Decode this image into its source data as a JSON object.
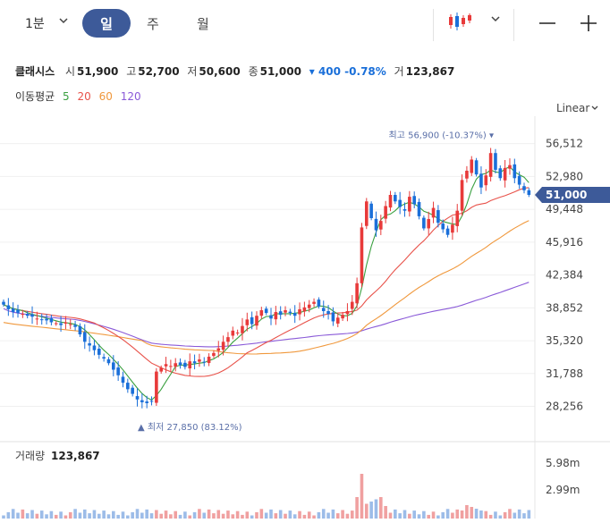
{
  "toolbar": {
    "interval": "1분",
    "tabs": [
      "일",
      "주",
      "월"
    ],
    "active_tab": "일"
  },
  "stock": {
    "name": "클래시스",
    "open_label": "시",
    "open": "51,900",
    "high_label": "고",
    "high": "52,700",
    "low_label": "저",
    "low": "50,600",
    "close_label": "종",
    "close": "51,000",
    "change": "▾ 400 -0.78%",
    "volume_label": "거",
    "volume": "123,867"
  },
  "moving_average": {
    "label": "이동평균",
    "periods": [
      {
        "value": "5",
        "color": "#3aa040"
      },
      {
        "value": "20",
        "color": "#e8524a"
      },
      {
        "value": "60",
        "color": "#f0983c"
      },
      {
        "value": "120",
        "color": "#8a5ad8"
      }
    ]
  },
  "scale_select": "Linear",
  "colors": {
    "up": "#e83a3a",
    "down": "#1a6fd9",
    "current_tag": "#3d5a99"
  },
  "chart_data": {
    "type": "candlestick",
    "y_ticks": [
      "56,512",
      "52,980",
      "49,448",
      "45,916",
      "42,384",
      "38,852",
      "35,320",
      "31,788",
      "28,256"
    ],
    "y_tick_values": [
      56512,
      52980,
      49448,
      45916,
      42384,
      38852,
      35320,
      31788,
      28256
    ],
    "ylim": [
      26000,
      58500
    ],
    "current_price": "51,000",
    "current_value": 51000,
    "high_annotation": "최고 56,900 (-10.37%) ▾",
    "high_value": 56900,
    "low_annotation": "▲ 최저 27,850 (83.12%)",
    "low_value": 27850,
    "closes": [
      39200,
      38700,
      38400,
      38300,
      38200,
      38000,
      37900,
      37700,
      37600,
      37500,
      37300,
      37200,
      37000,
      37300,
      37100,
      36800,
      36000,
      35200,
      34800,
      34300,
      33800,
      33400,
      32900,
      32200,
      31600,
      30800,
      30100,
      29600,
      29000,
      28700,
      28600,
      28800,
      32000,
      32400,
      32800,
      32600,
      32900,
      32700,
      32500,
      33100,
      32900,
      33300,
      33000,
      33600,
      34000,
      34500,
      35200,
      35700,
      36400,
      36200,
      36900,
      37600,
      37100,
      38000,
      38600,
      38300,
      37700,
      38400,
      38100,
      38600,
      38300,
      38000,
      38700,
      38900,
      39200,
      39500,
      39000,
      38500,
      38200,
      37400,
      37800,
      38100,
      38500,
      39500,
      41500,
      47500,
      50300,
      48500,
      47200,
      48200,
      49800,
      51000,
      50300,
      49700,
      49300,
      50800,
      50000,
      48700,
      47400,
      48400,
      49600,
      48000,
      47300,
      46700,
      47800,
      49300,
      52600,
      53600,
      54800,
      53200,
      51800,
      53100,
      55500,
      53700,
      52800,
      53900,
      54200,
      52800,
      52100,
      51500,
      51000
    ],
    "volume_label": "거래량",
    "volume_value": "123,867",
    "volume_ticks": [
      "5.98m",
      "2.99m"
    ],
    "volume_tick_values": [
      5980000,
      2990000
    ],
    "volume_spike_index": 75
  }
}
